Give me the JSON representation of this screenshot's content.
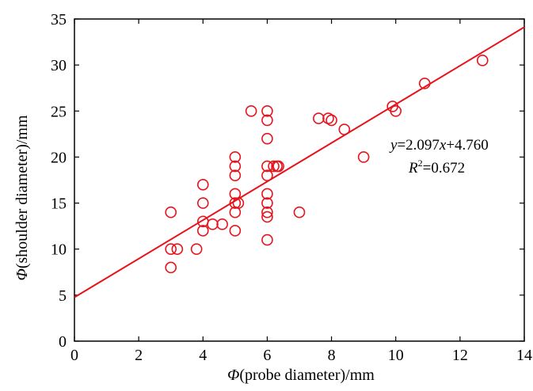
{
  "chart_data": {
    "type": "scatter",
    "xlabel_symbol": "Φ",
    "xlabel_text": "(probe diameter)/mm",
    "ylabel_symbol": "Φ",
    "ylabel_text": "(shoulder diameter)/mm",
    "xlim": [
      0,
      14
    ],
    "ylim": [
      0,
      35
    ],
    "xticks": [
      0,
      2,
      4,
      6,
      8,
      10,
      12,
      14
    ],
    "yticks": [
      0,
      5,
      10,
      15,
      20,
      25,
      30,
      35
    ],
    "grid": false,
    "marker": "open-circle",
    "colors": {
      "points": "#e8121b",
      "fit_line": "#e8121b",
      "axis": "#000000"
    },
    "points": [
      {
        "x": 3.0,
        "y": 14.0
      },
      {
        "x": 3.0,
        "y": 10.0
      },
      {
        "x": 3.2,
        "y": 10.0
      },
      {
        "x": 3.0,
        "y": 8.0
      },
      {
        "x": 3.8,
        "y": 10.0
      },
      {
        "x": 4.0,
        "y": 17.0
      },
      {
        "x": 4.0,
        "y": 15.0
      },
      {
        "x": 4.0,
        "y": 13.0
      },
      {
        "x": 4.0,
        "y": 12.0
      },
      {
        "x": 4.3,
        "y": 12.7
      },
      {
        "x": 4.6,
        "y": 12.7
      },
      {
        "x": 5.0,
        "y": 20.0
      },
      {
        "x": 5.0,
        "y": 19.0
      },
      {
        "x": 5.0,
        "y": 18.0
      },
      {
        "x": 5.0,
        "y": 16.0
      },
      {
        "x": 5.0,
        "y": 15.0
      },
      {
        "x": 5.1,
        "y": 15.0
      },
      {
        "x": 5.0,
        "y": 14.0
      },
      {
        "x": 5.0,
        "y": 12.0
      },
      {
        "x": 5.5,
        "y": 25.0
      },
      {
        "x": 6.0,
        "y": 25.0
      },
      {
        "x": 6.0,
        "y": 24.0
      },
      {
        "x": 6.0,
        "y": 22.0
      },
      {
        "x": 6.0,
        "y": 19.0
      },
      {
        "x": 6.0,
        "y": 18.0
      },
      {
        "x": 6.0,
        "y": 16.0
      },
      {
        "x": 6.0,
        "y": 15.0
      },
      {
        "x": 6.0,
        "y": 14.0
      },
      {
        "x": 6.0,
        "y": 13.5
      },
      {
        "x": 6.0,
        "y": 11.0
      },
      {
        "x": 6.2,
        "y": 19.0
      },
      {
        "x": 6.3,
        "y": 19.0
      },
      {
        "x": 6.35,
        "y": 19.0
      },
      {
        "x": 7.0,
        "y": 14.0
      },
      {
        "x": 7.6,
        "y": 24.2
      },
      {
        "x": 7.9,
        "y": 24.2
      },
      {
        "x": 8.0,
        "y": 24.0
      },
      {
        "x": 8.4,
        "y": 23.0
      },
      {
        "x": 9.0,
        "y": 20.0
      },
      {
        "x": 9.9,
        "y": 25.5
      },
      {
        "x": 10.0,
        "y": 25.0
      },
      {
        "x": 10.9,
        "y": 28.0
      },
      {
        "x": 12.7,
        "y": 30.5
      }
    ],
    "fit": {
      "slope": 2.097,
      "intercept": 4.76,
      "x_range": [
        0,
        14
      ]
    },
    "annotation": {
      "y_var": "y",
      "equation_mid": "=2.097",
      "x_var": "x",
      "equation_end": "+4.760",
      "r_base": "R",
      "r_sup": "2",
      "r_value": "=0.672"
    }
  }
}
